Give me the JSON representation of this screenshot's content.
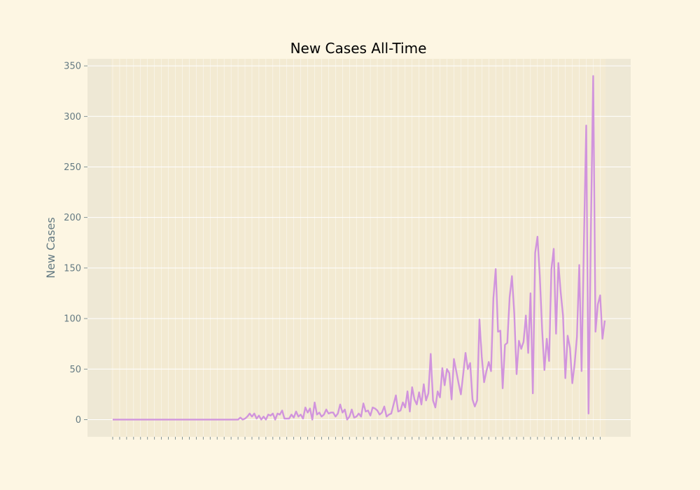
{
  "chart_data": {
    "type": "line",
    "title": "New Cases All-Time",
    "xlabel": "",
    "ylabel": "New Cases",
    "ylim": [
      -17,
      357
    ],
    "yticks": [
      0,
      50,
      100,
      150,
      200,
      250,
      300,
      350
    ],
    "grid": true,
    "x_tick_labels_visible": false,
    "series": [
      {
        "values": [
          0,
          0,
          0,
          0,
          0,
          0,
          0,
          0,
          0,
          0,
          0,
          0,
          0,
          0,
          0,
          0,
          0,
          0,
          0,
          0,
          0,
          0,
          0,
          0,
          0,
          0,
          0,
          0,
          0,
          0,
          0,
          0,
          0,
          0,
          0,
          0,
          0,
          0,
          0,
          0,
          0,
          0,
          0,
          0,
          0,
          0,
          0,
          0,
          0,
          0,
          0,
          0,
          0,
          0,
          0,
          2,
          0,
          1,
          3,
          6,
          3,
          6,
          1,
          4,
          0,
          3,
          0,
          5,
          4,
          6,
          0,
          6,
          5,
          9,
          1,
          1,
          1,
          5,
          2,
          8,
          3,
          5,
          1,
          12,
          7,
          11,
          0,
          17,
          5,
          7,
          3,
          5,
          10,
          6,
          7,
          7,
          3,
          6,
          15,
          7,
          10,
          0,
          3,
          10,
          2,
          3,
          6,
          3,
          16,
          8,
          9,
          4,
          12,
          11,
          9,
          5,
          7,
          13,
          3,
          5,
          6,
          15,
          24,
          8,
          9,
          17,
          12,
          28,
          8,
          32,
          20,
          15,
          27,
          15,
          35,
          19,
          26,
          65,
          19,
          12,
          28,
          22,
          51,
          34,
          50,
          46,
          20,
          60,
          48,
          36,
          25,
          45,
          66,
          50,
          56,
          20,
          13,
          19,
          99,
          62,
          37,
          48,
          57,
          48,
          120,
          149,
          87,
          88,
          31,
          74,
          76,
          121,
          142,
          105,
          45,
          78,
          70,
          77,
          103,
          66,
          125,
          26,
          165,
          181,
          142,
          89,
          49,
          80,
          58,
          149,
          169,
          85,
          155,
          126,
          103,
          41,
          83,
          71,
          36,
          55,
          82,
          153,
          48,
          175,
          291,
          6,
          186,
          340,
          87,
          114,
          123,
          80,
          98
        ]
      }
    ]
  }
}
